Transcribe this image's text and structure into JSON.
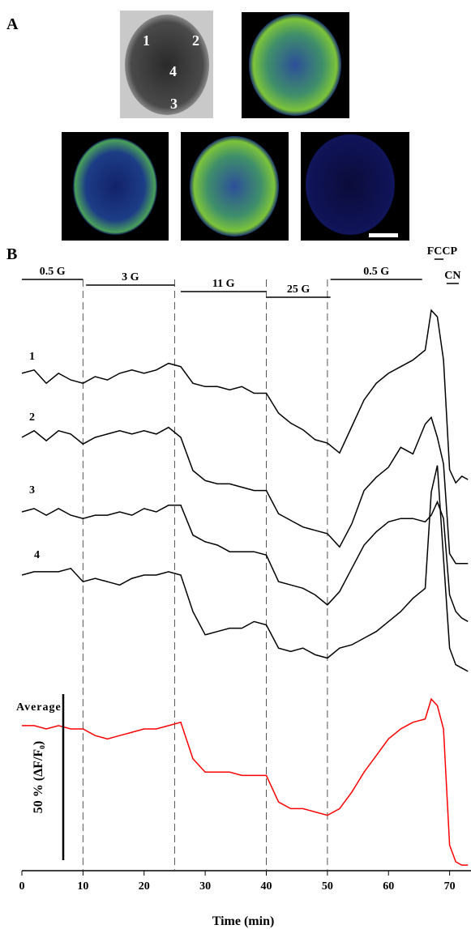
{
  "panel_a": {
    "label": "A",
    "cell_labels": [
      "1",
      "2",
      "3",
      "4"
    ]
  },
  "chart_data": {
    "type": "line",
    "panel_label": "B",
    "xlabel": "Time (min)",
    "xlim": [
      0,
      73.5
    ],
    "xticks": [
      0,
      10,
      20,
      30,
      40,
      50,
      60,
      70
    ],
    "x": [
      0,
      2,
      4,
      6,
      8,
      10,
      12,
      14,
      16,
      18,
      20,
      22,
      24,
      26,
      28,
      30,
      32,
      34,
      36,
      38,
      40,
      42,
      44,
      46,
      48,
      50,
      52,
      54,
      56,
      58,
      60,
      62,
      64,
      66,
      67,
      68,
      69,
      70,
      71,
      72,
      73
    ],
    "series": [
      {
        "name": "1",
        "color": "#000000",
        "values": [
          1,
          2,
          -2,
          1,
          -1,
          -2,
          0,
          -1,
          1,
          2,
          1,
          2,
          4,
          3,
          -2,
          -3,
          -3,
          -4,
          -3,
          -5,
          -5,
          -11,
          -14,
          -16,
          -19,
          -20,
          -23,
          -15,
          -7,
          -2,
          1,
          3,
          5,
          8,
          20,
          18,
          5,
          -28,
          -32,
          -30,
          -31
        ]
      },
      {
        "name": "2",
        "color": "#000000",
        "values": [
          0,
          2,
          -1,
          2,
          1,
          -2,
          0,
          1,
          2,
          1,
          2,
          1,
          3,
          0,
          -10,
          -13,
          -14,
          -14,
          -15,
          -16,
          -16,
          -23,
          -25,
          -27,
          -28,
          -29,
          -33,
          -26,
          -16,
          -12,
          -9,
          -3,
          -5,
          4,
          6,
          0,
          -8,
          -35,
          -38,
          -38,
          -38
        ]
      },
      {
        "name": "3",
        "color": "#000000",
        "values": [
          0,
          1,
          -1,
          1,
          -1,
          -2,
          -1,
          -1,
          0,
          -1,
          1,
          0,
          2,
          2,
          -7,
          -9,
          -10,
          -12,
          -12,
          -12,
          -13,
          -21,
          -22,
          -23,
          -25,
          -28,
          -24,
          -17,
          -10,
          -6,
          -3,
          -2,
          -2,
          -3,
          -1,
          3,
          -2,
          -25,
          -30,
          -32,
          -33
        ]
      },
      {
        "name": "4",
        "color": "#000000",
        "values": [
          0,
          1,
          1,
          1,
          2,
          -2,
          -1,
          -2,
          -3,
          -1,
          0,
          0,
          1,
          0,
          -11,
          -18,
          -17,
          -16,
          -16,
          -14,
          -15,
          -22,
          -23,
          -22,
          -24,
          -25,
          -22,
          -21,
          -19,
          -17,
          -14,
          -11,
          -7,
          -4,
          25,
          33,
          5,
          -22,
          -27,
          -28,
          -29
        ]
      },
      {
        "name": "Average",
        "color": "#ff0000",
        "values": [
          1,
          1,
          0,
          1,
          0,
          0,
          -2,
          -3,
          -2,
          -1,
          0,
          0,
          1,
          2,
          -9,
          -13,
          -13,
          -13,
          -14,
          -14,
          -14,
          -22,
          -24,
          -24,
          -25,
          -26,
          -24,
          -19,
          -13,
          -8,
          -3,
          0,
          2,
          3,
          9,
          7,
          0,
          -35,
          -40,
          -41,
          -41
        ]
      }
    ],
    "periods": [
      {
        "label": "0.5 G",
        "start": 0,
        "end": 10
      },
      {
        "label": "3 G",
        "start": 10.5,
        "end": 25
      },
      {
        "label": "11 G",
        "start": 26,
        "end": 40
      },
      {
        "label": "25 G",
        "start": 40,
        "end": 50.5
      },
      {
        "label": "0.5 G",
        "start": 50.5,
        "end": 65.5
      },
      {
        "label": "FCCP",
        "start": 67.5,
        "end": 69
      },
      {
        "label": "CN",
        "start": 69.5,
        "end": 71.5
      }
    ],
    "dividers": [
      10,
      25,
      40,
      50
    ],
    "scale_bar": {
      "value": 50,
      "label": "50 % (ΔF/F₀)"
    }
  }
}
